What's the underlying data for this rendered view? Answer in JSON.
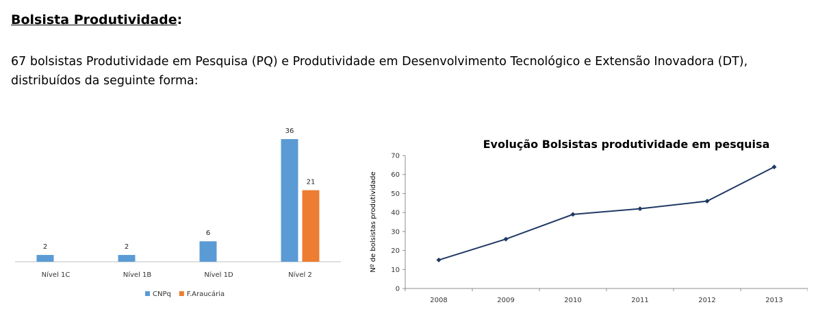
{
  "page": {
    "heading": "Bolsista Produtividade",
    "heading_suffix": ":",
    "intro": "67 bolsistas Produtividade em Pesquisa (PQ) e Produtividade em Desenvolvimento Tecnológico e Extensão Inovadora (DT), distribuídos da seguinte forma:"
  },
  "chart_data": [
    {
      "type": "bar",
      "title": "",
      "xlabel": "",
      "ylabel": "",
      "categories": [
        "Nível 1C",
        "Nível 1B",
        "Nível 1D",
        "Nível 2"
      ],
      "series": [
        {
          "name": "CNPq",
          "values": [
            2,
            2,
            6,
            36
          ],
          "color": "#5B9BD5"
        },
        {
          "name": "F.Araucária",
          "values": [
            null,
            null,
            null,
            21
          ],
          "color": "#ED7D31"
        }
      ],
      "ylim": [
        0,
        36
      ],
      "grid": false,
      "legend": "bottom",
      "data_labels": true
    },
    {
      "type": "line",
      "title": "Evolução Bolsistas produtividade em pesquisa",
      "xlabel": "",
      "ylabel": "Nº de bolsistas produtividade",
      "x": [
        "2008",
        "2009",
        "2010",
        "2011",
        "2012",
        "2013"
      ],
      "series": [
        {
          "values": [
            15,
            26,
            39,
            42,
            46,
            64
          ],
          "color": "#1F3864"
        }
      ],
      "ylim": [
        0,
        70
      ],
      "yticks": [
        0,
        10,
        20,
        30,
        40,
        50,
        60,
        70
      ],
      "grid": false,
      "legend": "none",
      "marker": "diamond"
    }
  ]
}
